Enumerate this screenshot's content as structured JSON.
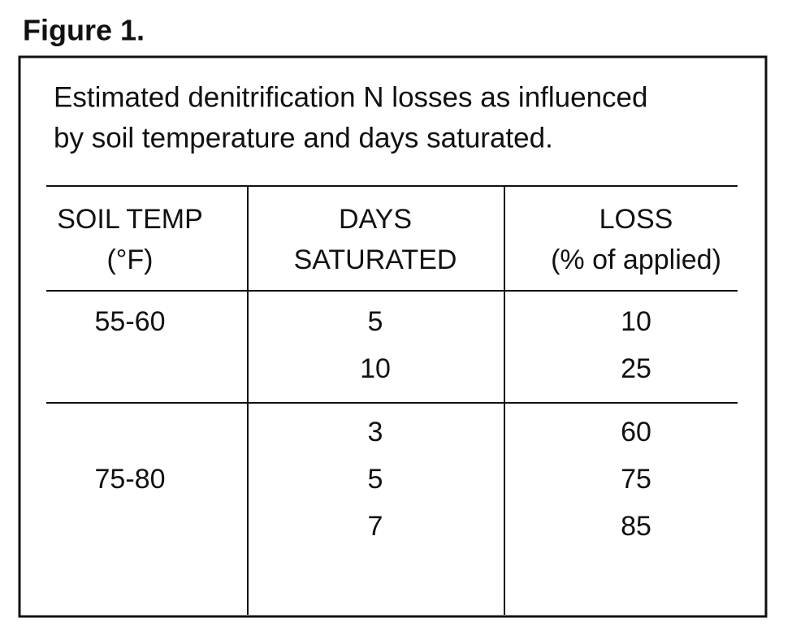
{
  "figure_label": "Figure 1.",
  "caption": [
    "Estimated denitrification N losses as influenced",
    "by soil temperature and days saturated."
  ],
  "table": {
    "headers": [
      [
        "SOIL TEMP",
        "(°F)"
      ],
      [
        "DAYS",
        "SATURATED"
      ],
      [
        "LOSS",
        "(% of applied)"
      ]
    ],
    "groups": [
      {
        "temp": "55-60",
        "rows": [
          [
            "5",
            "10"
          ],
          [
            "10",
            "25"
          ]
        ]
      },
      {
        "temp": "75-80",
        "rows": [
          [
            "3",
            "60"
          ],
          [
            "5",
            "75"
          ],
          [
            "7",
            "85"
          ]
        ]
      }
    ]
  }
}
